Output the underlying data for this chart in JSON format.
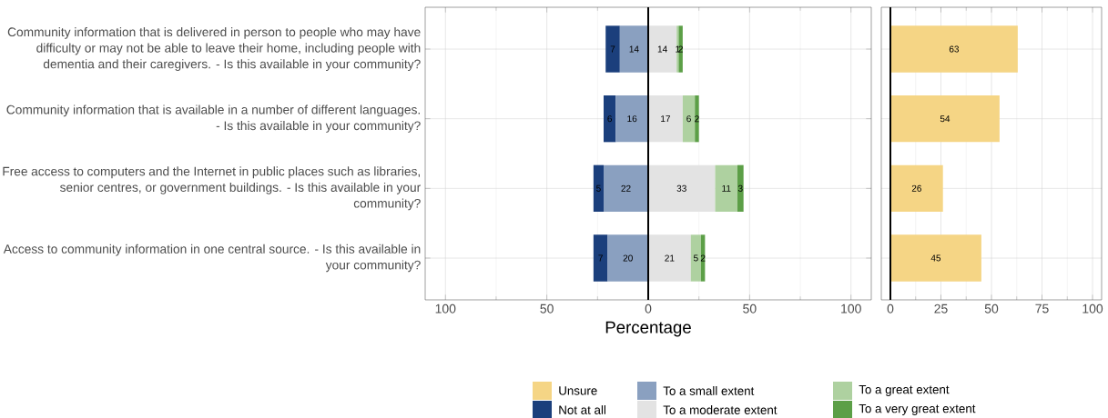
{
  "chart_data": [
    {
      "type": "bar",
      "orientation": "horizontal",
      "xlabel": "Percentage",
      "categories": [
        "Community information that is delivered in person to people who may have difficulty or may not be able to leave their home, including people with dementia and their caregivers. - Is this available in your community?",
        "Community information that is available in a number of different languages. - Is this available in your community?",
        "Free access to computers and the Internet in public places such as libraries, senior centres, or government buildings. - Is this available in your community?",
        "Access to community information in one central source. - Is this available in your community?"
      ],
      "series": [
        {
          "name": "Not at all",
          "color": "#1b3f7c",
          "values": [
            7,
            6,
            5,
            7
          ],
          "base": [
            -21,
            -22,
            -27,
            -27
          ]
        },
        {
          "name": "To a small extent",
          "color": "#8aa0c0",
          "values": [
            14,
            16,
            22,
            20
          ],
          "base": [
            -14,
            -16,
            -22,
            -20
          ]
        },
        {
          "name": "To a moderate extent",
          "color": "#e3e3e3",
          "values": [
            14,
            17,
            33,
            21
          ],
          "base": [
            0,
            0,
            0,
            0
          ]
        },
        {
          "name": "To a great extent",
          "color": "#aed1a0",
          "values": [
            1,
            6,
            11,
            5
          ],
          "base": [
            14,
            17,
            33,
            21
          ]
        },
        {
          "name": "To a very great extent",
          "color": "#5c9f47",
          "values": [
            2,
            2,
            3,
            2
          ],
          "base": [
            15,
            23,
            44,
            26
          ]
        }
      ],
      "xlim": [
        -110,
        110
      ],
      "xticks": [
        {
          "value": -100,
          "label": "100"
        },
        {
          "value": -50,
          "label": "50"
        },
        0,
        50,
        100
      ],
      "ref_lines": [
        {
          "axis": "x",
          "value": 0,
          "color": "#000000"
        }
      ],
      "data_labels": true,
      "grid": true,
      "legend": "bottom"
    },
    {
      "type": "bar",
      "orientation": "horizontal",
      "categories": [
        null,
        null,
        null,
        null
      ],
      "series": [
        {
          "name": "Unsure",
          "color": "#f5d585",
          "values": [
            63,
            54,
            26,
            45
          ]
        }
      ],
      "xlim": [
        -4.5,
        104.5
      ],
      "xticks": [
        0,
        25,
        50,
        75,
        100
      ],
      "tick_labels": "x",
      "data_labels": true,
      "ref_lines": [
        {
          "axis": "x",
          "value": 0,
          "color": "#000000"
        }
      ],
      "grid": true,
      "legend": "bottom"
    }
  ]
}
